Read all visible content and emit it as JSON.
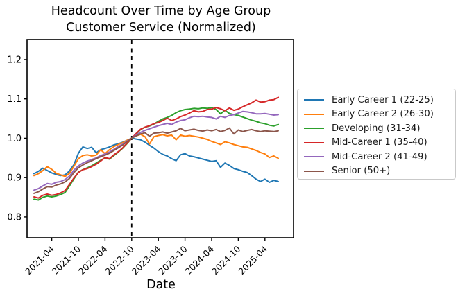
{
  "title": {
    "line1": "Headcount Over Time by Age Group",
    "line2": "Customer Service (Normalized)"
  },
  "chart_data": {
    "type": "line",
    "title": "Headcount Over Time by Age Group — Customer Service (Normalized)",
    "xlabel": "Date",
    "ylabel": "",
    "grid": false,
    "legend_position": "right-outside",
    "ylim": [
      0.747,
      1.251
    ],
    "y_ticks": [
      0.8,
      0.9,
      1.0,
      1.1,
      1.2
    ],
    "x_tick_labels": [
      "2021-04",
      "2021-10",
      "2022-04",
      "2022-10",
      "2023-04",
      "2023-10",
      "2024-04",
      "2024-10",
      "2025-04"
    ],
    "x_tick_indices": [
      4,
      10,
      16,
      22,
      28,
      34,
      40,
      46,
      52
    ],
    "x_labels": [
      "2020-12",
      "2021-01",
      "2021-02",
      "2021-03",
      "2021-04",
      "2021-05",
      "2021-06",
      "2021-07",
      "2021-08",
      "2021-09",
      "2021-10",
      "2021-11",
      "2021-12",
      "2022-01",
      "2022-02",
      "2022-03",
      "2022-04",
      "2022-05",
      "2022-06",
      "2022-07",
      "2022-08",
      "2022-09",
      "2022-10",
      "2022-11",
      "2022-12",
      "2023-01",
      "2023-02",
      "2023-03",
      "2023-04",
      "2023-05",
      "2023-06",
      "2023-07",
      "2023-08",
      "2023-09",
      "2023-10",
      "2023-11",
      "2023-12",
      "2024-01",
      "2024-02",
      "2024-03",
      "2024-04",
      "2024-05",
      "2024-06",
      "2024-07",
      "2024-08",
      "2024-09",
      "2024-10",
      "2024-11",
      "2024-12",
      "2025-01",
      "2025-02",
      "2025-03",
      "2025-04",
      "2025-05",
      "2025-06",
      "2025-07"
    ],
    "normalization_line": {
      "x": "2022-10",
      "style": "dashed",
      "color": "#000000"
    },
    "series": [
      {
        "name": "Early Career 1 (22-25)",
        "color": "#1f77b4",
        "values": [
          0.91,
          0.916,
          0.924,
          0.918,
          0.912,
          0.908,
          0.905,
          0.907,
          0.917,
          0.933,
          0.962,
          0.978,
          0.974,
          0.977,
          0.963,
          0.971,
          0.974,
          0.978,
          0.983,
          0.986,
          0.99,
          0.995,
          1.0,
          0.998,
          0.996,
          0.99,
          0.982,
          0.975,
          0.966,
          0.959,
          0.955,
          0.948,
          0.943,
          0.958,
          0.961,
          0.955,
          0.953,
          0.95,
          0.947,
          0.944,
          0.941,
          0.943,
          0.926,
          0.937,
          0.931,
          0.923,
          0.92,
          0.916,
          0.913,
          0.905,
          0.896,
          0.89,
          0.896,
          0.888,
          0.893,
          0.89
        ]
      },
      {
        "name": "Early Career 2 (26-30)",
        "color": "#ff7f0e",
        "values": [
          0.905,
          0.91,
          0.918,
          0.928,
          0.921,
          0.911,
          0.907,
          0.903,
          0.911,
          0.929,
          0.948,
          0.956,
          0.958,
          0.955,
          0.957,
          0.971,
          0.961,
          0.971,
          0.979,
          0.984,
          0.989,
          0.995,
          1.0,
          1.006,
          1.01,
          1.004,
          0.985,
          1.004,
          1.007,
          1.009,
          1.006,
          1.008,
          0.996,
          1.008,
          1.005,
          1.007,
          1.005,
          1.003,
          1.0,
          0.997,
          0.992,
          0.988,
          0.984,
          0.991,
          0.988,
          0.984,
          0.981,
          0.978,
          0.977,
          0.973,
          0.969,
          0.964,
          0.96,
          0.951,
          0.955,
          0.949
        ]
      },
      {
        "name": "Developing (31-34)",
        "color": "#2ca02c",
        "values": [
          0.845,
          0.843,
          0.85,
          0.853,
          0.851,
          0.853,
          0.857,
          0.862,
          0.879,
          0.897,
          0.914,
          0.92,
          0.925,
          0.93,
          0.937,
          0.944,
          0.95,
          0.947,
          0.956,
          0.965,
          0.975,
          0.987,
          1.0,
          1.011,
          1.022,
          1.028,
          1.031,
          1.036,
          1.043,
          1.049,
          1.053,
          1.058,
          1.065,
          1.07,
          1.073,
          1.074,
          1.076,
          1.075,
          1.077,
          1.076,
          1.078,
          1.073,
          1.062,
          1.071,
          1.063,
          1.06,
          1.058,
          1.054,
          1.05,
          1.046,
          1.043,
          1.039,
          1.037,
          1.033,
          1.031,
          1.035
        ]
      },
      {
        "name": "Mid-Career 1 (35-40)",
        "color": "#d62728",
        "values": [
          0.851,
          0.848,
          0.855,
          0.858,
          0.855,
          0.857,
          0.861,
          0.867,
          0.883,
          0.899,
          0.913,
          0.92,
          0.923,
          0.928,
          0.934,
          0.942,
          0.951,
          0.948,
          0.958,
          0.966,
          0.976,
          0.988,
          1.0,
          1.012,
          1.023,
          1.028,
          1.032,
          1.037,
          1.04,
          1.045,
          1.051,
          1.045,
          1.049,
          1.055,
          1.059,
          1.064,
          1.07,
          1.067,
          1.068,
          1.073,
          1.074,
          1.078,
          1.075,
          1.07,
          1.077,
          1.071,
          1.074,
          1.08,
          1.085,
          1.09,
          1.097,
          1.092,
          1.093,
          1.097,
          1.098,
          1.104
        ]
      },
      {
        "name": "Mid-Career 2 (41-49)",
        "color": "#9467bd",
        "values": [
          0.868,
          0.872,
          0.879,
          0.885,
          0.883,
          0.888,
          0.89,
          0.895,
          0.904,
          0.919,
          0.93,
          0.937,
          0.942,
          0.946,
          0.95,
          0.956,
          0.96,
          0.965,
          0.972,
          0.979,
          0.985,
          0.993,
          1.0,
          1.008,
          1.015,
          1.02,
          1.024,
          1.028,
          1.032,
          1.035,
          1.038,
          1.035,
          1.041,
          1.045,
          1.047,
          1.052,
          1.056,
          1.055,
          1.056,
          1.054,
          1.053,
          1.049,
          1.056,
          1.053,
          1.058,
          1.06,
          1.064,
          1.068,
          1.067,
          1.065,
          1.062,
          1.062,
          1.063,
          1.061,
          1.059,
          1.06
        ]
      },
      {
        "name": "Senior (50+)",
        "color": "#8c564b",
        "values": [
          0.86,
          0.864,
          0.871,
          0.877,
          0.876,
          0.881,
          0.884,
          0.889,
          0.898,
          0.913,
          0.925,
          0.932,
          0.938,
          0.943,
          0.948,
          0.953,
          0.957,
          0.962,
          0.969,
          0.976,
          0.983,
          0.992,
          1.0,
          1.006,
          1.011,
          1.014,
          1.005,
          1.013,
          1.014,
          1.016,
          1.013,
          1.016,
          1.019,
          1.025,
          1.019,
          1.021,
          1.023,
          1.02,
          1.018,
          1.021,
          1.019,
          1.022,
          1.017,
          1.02,
          1.026,
          1.011,
          1.021,
          1.017,
          1.02,
          1.022,
          1.019,
          1.017,
          1.019,
          1.018,
          1.017,
          1.019
        ]
      }
    ]
  }
}
